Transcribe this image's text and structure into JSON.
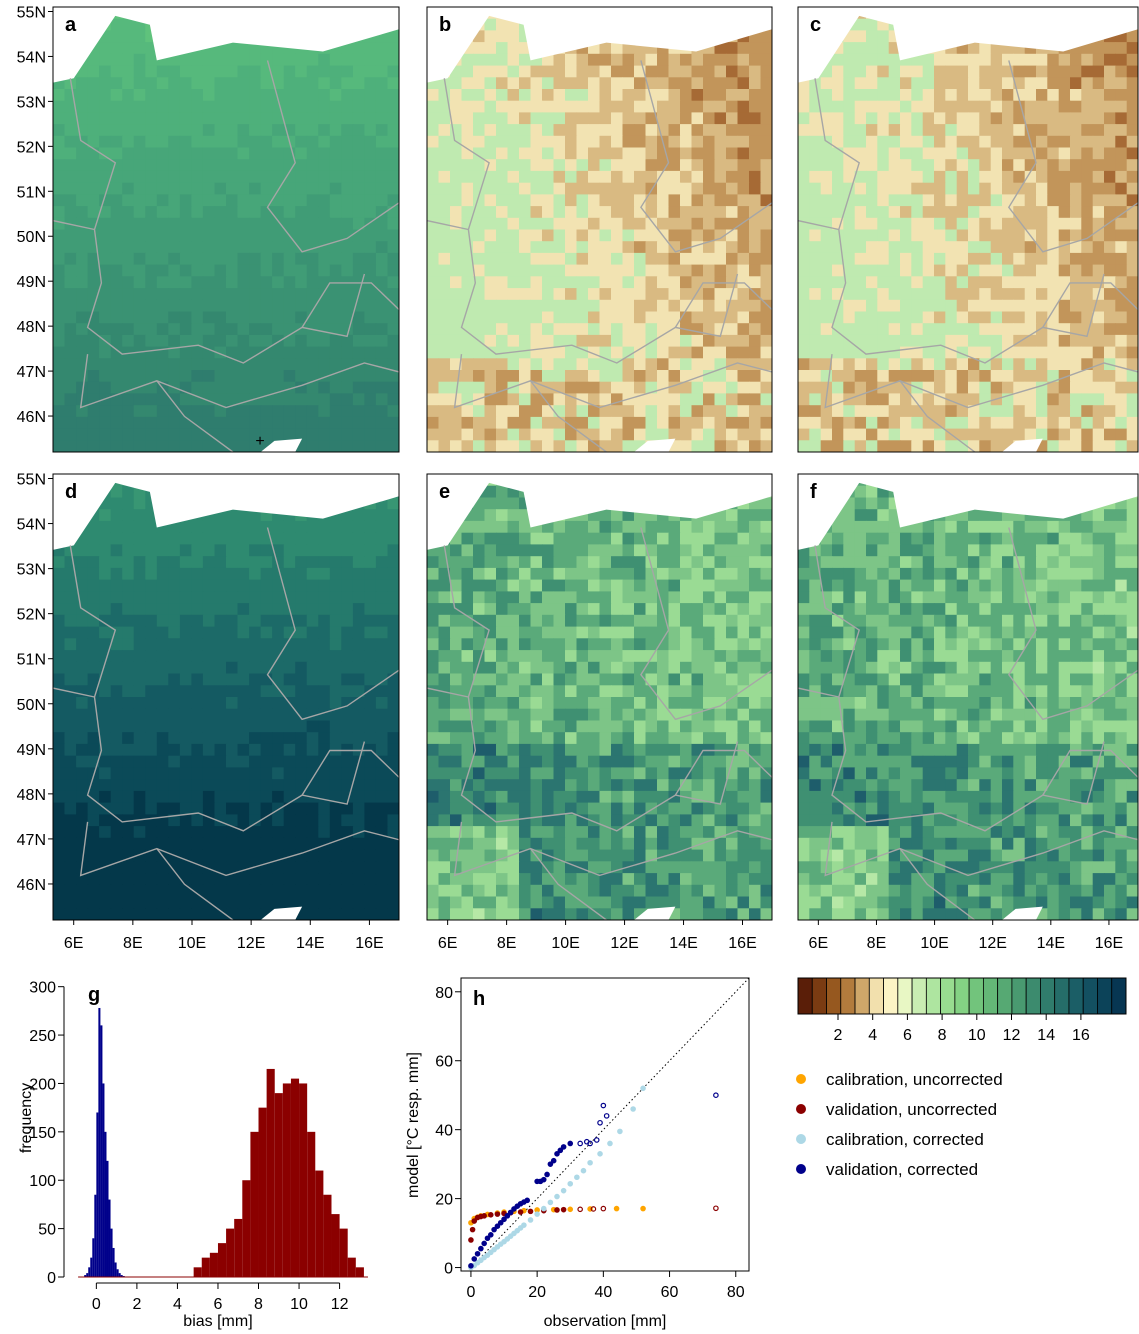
{
  "map_axes": {
    "lat_ticks": [
      "46N",
      "47N",
      "48N",
      "49N",
      "50N",
      "51N",
      "52N",
      "53N",
      "54N",
      "55N"
    ],
    "lon_ticks": [
      "6E",
      "8E",
      "10E",
      "12E",
      "14E",
      "16E"
    ],
    "lat_range": [
      45.2,
      55.1
    ],
    "lon_range": [
      5.3,
      17.0
    ]
  },
  "panels": [
    {
      "label": "a",
      "field": "temperature-gradient",
      "fill": "#3a9a7a"
    },
    {
      "label": "b",
      "field": "dry-anomaly",
      "fill": "#a8733f"
    },
    {
      "label": "c",
      "field": "dry-anomaly-corrected",
      "fill": "#b07a45"
    },
    {
      "label": "d",
      "field": "temperature-gradient-dark",
      "fill": "#1f6e72"
    },
    {
      "label": "e",
      "field": "wet-field",
      "fill": "#8fd08a"
    },
    {
      "label": "f",
      "field": "wet-field-corrected",
      "fill": "#7cc582"
    }
  ],
  "colorbar": {
    "ticks": [
      "2",
      "4",
      "6",
      "8",
      "10",
      "12",
      "14",
      "16"
    ],
    "colors": [
      "#5a1e08",
      "#7a3b12",
      "#96581f",
      "#b27b3d",
      "#cfa76a",
      "#f2e0ad",
      "#fbf3c5",
      "#e8f7c4",
      "#c9edb2",
      "#aee5a0",
      "#98dc90",
      "#84d284",
      "#72c47c",
      "#64b777",
      "#56a973",
      "#499a70",
      "#3c8b6e",
      "#307c6c",
      "#256d69",
      "#1b5e66",
      "#135061",
      "#0c4359",
      "#073652"
    ]
  },
  "legend": [
    {
      "label": "calibration, uncorrected",
      "color": "#ffa500"
    },
    {
      "label": "validation, uncorrected",
      "color": "#8b0000"
    },
    {
      "label": "calibration, corrected",
      "color": "#add8e6"
    },
    {
      "label": "validation, corrected",
      "color": "#00008b"
    }
  ],
  "chart_data": [
    {
      "type": "bar",
      "panel": "g",
      "xlabel": "bias [mm]",
      "ylabel": "frequency",
      "xlim": [
        -1.3,
        13.5
      ],
      "ylim": [
        0,
        310
      ],
      "x_ticks": [
        "0",
        "2",
        "4",
        "6",
        "8",
        "10",
        "12"
      ],
      "y_ticks": [
        "0",
        "50",
        "100",
        "150",
        "200",
        "250",
        "300"
      ],
      "series": [
        {
          "color": "#00008b",
          "bin_width": 0.1,
          "bin_starts": [
            -0.6,
            -0.5,
            -0.4,
            -0.3,
            -0.2,
            -0.1,
            0.0,
            0.1,
            0.2,
            0.3,
            0.4,
            0.5,
            0.6,
            0.7,
            0.8,
            0.9,
            1.0,
            1.1,
            1.2,
            1.3
          ],
          "values": [
            2,
            4,
            10,
            20,
            40,
            85,
            170,
            278,
            260,
            200,
            150,
            120,
            80,
            50,
            30,
            15,
            8,
            4,
            2,
            1
          ]
        },
        {
          "color": "#8b0000",
          "bin_width": 0.4,
          "bin_starts": [
            4.8,
            5.2,
            5.6,
            6.0,
            6.4,
            6.8,
            7.2,
            7.6,
            8.0,
            8.4,
            8.8,
            9.2,
            9.6,
            10.0,
            10.4,
            10.8,
            11.2,
            11.6,
            12.0,
            12.4,
            12.8
          ],
          "values": [
            10,
            20,
            25,
            35,
            50,
            60,
            100,
            150,
            175,
            215,
            190,
            200,
            205,
            200,
            150,
            110,
            85,
            65,
            50,
            20,
            10
          ]
        }
      ]
    },
    {
      "type": "scatter",
      "panel": "h",
      "xlabel": "observation [mm]",
      "ylabel": "model [°C resp. mm]",
      "xlim": [
        -3,
        84
      ],
      "ylim": [
        -1,
        84
      ],
      "x_ticks": [
        "0",
        "20",
        "40",
        "60",
        "80"
      ],
      "y_ticks": [
        "0",
        "20",
        "40",
        "60",
        "80"
      ],
      "reference_line": "1:1",
      "series": [
        {
          "name": "calibration, uncorrected",
          "color": "#ffa500",
          "x": [
            0,
            1,
            2,
            3,
            5,
            8,
            10,
            13,
            16,
            20,
            25,
            30,
            36,
            44,
            52
          ],
          "y": [
            13,
            14.2,
            14.6,
            15,
            15.4,
            15.8,
            16.1,
            16.3,
            16.5,
            16.7,
            16.8,
            16.9,
            17,
            17.1,
            17.1
          ]
        },
        {
          "name": "validation, uncorrected",
          "color": "#8b0000",
          "x": [
            0,
            0.5,
            1,
            2,
            3,
            4,
            6,
            8,
            10,
            12,
            15,
            18,
            22,
            26,
            28,
            33,
            37,
            40,
            74
          ],
          "y": [
            8,
            11,
            13.5,
            14.5,
            14.8,
            15,
            15.3,
            15.5,
            15.7,
            15.9,
            16.1,
            16.3,
            16.5,
            16.7,
            16.8,
            16.9,
            17,
            17.1,
            17.2
          ]
        },
        {
          "name": "calibration, corrected",
          "color": "#add8e6",
          "x": [
            0,
            1,
            2,
            3,
            4,
            5,
            6,
            7,
            8,
            9,
            10,
            11,
            12,
            13,
            14,
            15,
            16,
            18,
            20,
            22,
            24,
            26,
            28,
            30,
            32,
            34,
            36,
            39,
            42,
            45,
            49,
            52
          ],
          "y": [
            0,
            0.6,
            1.4,
            2.1,
            2.9,
            3.6,
            4.4,
            5.2,
            6,
            6.8,
            7.5,
            8.3,
            9.1,
            9.9,
            10.7,
            11.5,
            12.3,
            13.8,
            15.5,
            17.1,
            18.9,
            20.6,
            22.3,
            24.3,
            26.2,
            28.1,
            30.4,
            33,
            36,
            39.5,
            46,
            52
          ]
        },
        {
          "name": "validation, corrected",
          "color": "#00008b",
          "x": [
            0,
            1,
            2,
            3,
            4,
            5,
            6,
            7,
            8,
            9,
            10,
            11,
            12,
            13,
            14,
            15,
            16,
            17,
            20,
            21,
            22,
            23,
            24,
            25,
            26,
            27,
            28,
            30,
            33,
            35,
            36,
            38,
            39,
            40,
            41,
            74
          ],
          "y": [
            0.5,
            2.5,
            4,
            5.5,
            7,
            8.5,
            9.5,
            11,
            12,
            13,
            14,
            15,
            16,
            17,
            17.8,
            18.5,
            19,
            19.5,
            25,
            25,
            25.5,
            27,
            30,
            31,
            33,
            34,
            35,
            36,
            36,
            36.5,
            36,
            37,
            42,
            47,
            44,
            50
          ]
        }
      ]
    }
  ]
}
